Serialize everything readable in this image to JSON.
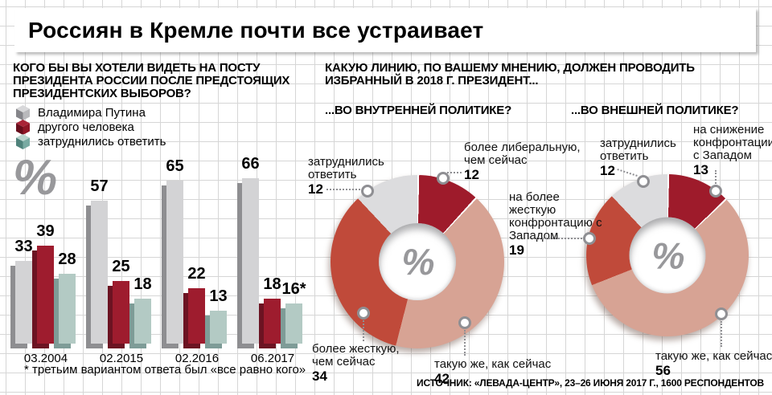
{
  "title": "Россиян в Кремле почти все устраивает",
  "unit_symbol": "%",
  "left_section": {
    "question": "КОГО БЫ ВЫ ХОТЕЛИ ВИДЕТЬ НА ПОСТУ ПРЕЗИДЕНТА РОССИИ ПОСЛЕ ПРЕДСТОЯЩИХ ПРЕЗИДЕНТСКИХ ВЫБОРОВ?",
    "footnote": "* третьим вариантом ответа был «все равно кого»"
  },
  "right_section": {
    "question": "КАКУЮ ЛИНИЮ, ПО ВАШЕМУ МНЕНИЮ, ДОЛЖЕН ПРОВОДИТЬ ИЗБРАННЫЙ В 2018 Г. ПРЕЗИДЕНТ...",
    "subtitle_internal": "...ВО ВНУТРЕННЕЙ ПОЛИТИКЕ?",
    "subtitle_external": "...ВО ВНЕШНЕЙ ПОЛИТИКЕ?"
  },
  "source": "ИСТОЧНИК: «ЛЕВАДА-ЦЕНТР», 23–26 ИЮНЯ 2017 Г., 1600 РЕСПОНДЕНТОВ",
  "colors": {
    "dark_red": "#9e1b2b",
    "medium_red": "#c04a3a",
    "tan": "#d7a394",
    "light_gray": "#dcdcde",
    "bar_gray": "#d3d3d5",
    "bar_teal": "#b3cac4",
    "grid": "#d6d6d6",
    "percent_gray": "#98989b"
  },
  "chart_data": [
    {
      "type": "bar",
      "title": "КОГО БЫ ВЫ ХОТЕЛИ ВИДЕТЬ НА ПОСТУ ПРЕЗИДЕНТА РОССИИ ПОСЛЕ ПРЕДСТОЯЩИХ ПРЕЗИДЕНТСКИХ ВЫБОРОВ?",
      "unit": "%",
      "categories": [
        "03.2004",
        "02.2015",
        "02.2016",
        "06.2017"
      ],
      "series": [
        {
          "name": "Владимира Путина",
          "color": "#d3d3d5",
          "shadow": "#8e8e91",
          "cube": {
            "light": "#d8d8da",
            "base": "#b9b9bc",
            "dark": "#85858a"
          },
          "values": [
            33,
            57,
            65,
            66
          ],
          "labels": [
            "33",
            "57",
            "65",
            "66"
          ]
        },
        {
          "name": "другого человека",
          "color": "#9e1c2e",
          "shadow": "#6c1322",
          "cube": {
            "light": "#a92437",
            "base": "#8f1626",
            "dark": "#670e1c"
          },
          "values": [
            39,
            25,
            22,
            18
          ],
          "labels": [
            "39",
            "25",
            "22",
            "18"
          ]
        },
        {
          "name": "затруднились ответить",
          "color": "#b3cac4",
          "shadow": "#7e9c97",
          "cube": {
            "light": "#b9d4cd",
            "base": "#79aaa2",
            "dark": "#4f827b"
          },
          "values": [
            28,
            18,
            13,
            16
          ],
          "labels": [
            "28",
            "18",
            "13",
            "16*"
          ]
        }
      ],
      "ylim": [
        0,
        70
      ],
      "grid": true,
      "footnote": "* третьим вариантом ответа был «все равно кого»"
    },
    {
      "type": "pie",
      "subtype": "donut",
      "title": "...ВО ВНУТРЕННЕЙ ПОЛИТИКЕ?",
      "start_angle_deg": 0,
      "direction": "clockwise",
      "center_label": "%",
      "slices": [
        {
          "label": "более либеральную, чем сейчас",
          "value": 12,
          "color": "#9e1b2b"
        },
        {
          "label": "такую же, как сейчас",
          "value": 42,
          "color": "#d7a394"
        },
        {
          "label": "более жесткую, чем сейчас",
          "value": 34,
          "color": "#c04a3a"
        },
        {
          "label": "затруднились ответить",
          "value": 12,
          "color": "#dcdcde"
        }
      ]
    },
    {
      "type": "pie",
      "subtype": "donut",
      "title": "...ВО ВНЕШНЕЙ ПОЛИТИКЕ?",
      "start_angle_deg": 0,
      "direction": "clockwise",
      "center_label": "%",
      "slices": [
        {
          "label": "на снижение конфронтации с Западом",
          "value": 13,
          "color": "#9e1b2b"
        },
        {
          "label": "такую же, как сейчас",
          "value": 56,
          "color": "#d7a394"
        },
        {
          "label": "на более жесткую конфронтацию с Западом",
          "value": 19,
          "color": "#c04a3a"
        },
        {
          "label": "затруднились ответить",
          "value": 12,
          "color": "#dcdcde"
        }
      ]
    }
  ]
}
